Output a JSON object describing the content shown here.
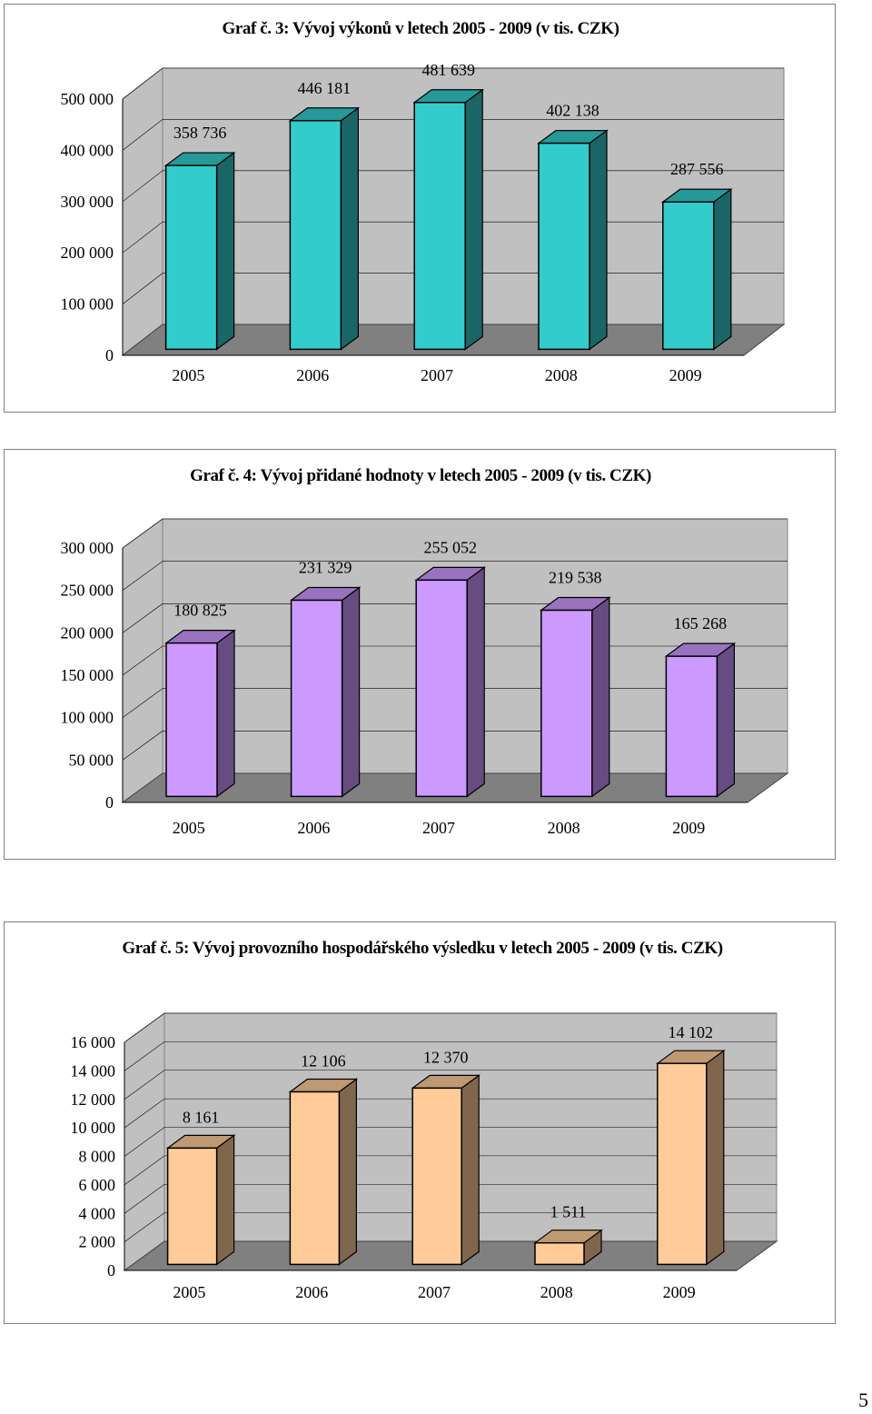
{
  "page_number": "5",
  "chart_data": [
    {
      "type": "bar",
      "title": "Graf č. 3: Vývoj výkonů v letech 2005 - 2009 (v tis. CZK)",
      "categories": [
        "2005",
        "2006",
        "2007",
        "2008",
        "2009"
      ],
      "values": [
        358736,
        446181,
        481639,
        402138,
        287556
      ],
      "value_labels": [
        "358 736",
        "446 181",
        "481 639",
        "402 138",
        "287 556"
      ],
      "ylim": [
        0,
        500000
      ],
      "yticks": [
        0,
        100000,
        200000,
        300000,
        400000,
        500000
      ],
      "ytick_labels": [
        "0",
        "100 000",
        "200 000",
        "300 000",
        "400 000",
        "500 000"
      ],
      "xlabel": "",
      "ylabel": "",
      "colors": {
        "front": "#33CCCC",
        "side": "#1A6666",
        "top": "#269999"
      }
    },
    {
      "type": "bar",
      "title": "Graf č. 4: Vývoj přidané hodnoty v letech 2005 - 2009 (v tis. CZK)",
      "categories": [
        "2005",
        "2006",
        "2007",
        "2008",
        "2009"
      ],
      "values": [
        180825,
        231329,
        255052,
        219538,
        165268
      ],
      "value_labels": [
        "180 825",
        "231 329",
        "255 052",
        "219 538",
        "165 268"
      ],
      "ylim": [
        0,
        300000
      ],
      "yticks": [
        0,
        50000,
        100000,
        150000,
        200000,
        250000,
        300000
      ],
      "ytick_labels": [
        "0",
        "50 000",
        "100 000",
        "150 000",
        "200 000",
        "250 000",
        "300 000"
      ],
      "xlabel": "",
      "ylabel": "",
      "colors": {
        "front": "#CC99FF",
        "side": "#664C80",
        "top": "#9973BF"
      }
    },
    {
      "type": "bar",
      "title": "Graf č. 5: Vývoj provozního hospodářského výsledku v letech 2005 - 2009 (v tis. CZK)",
      "categories": [
        "2005",
        "2006",
        "2007",
        "2008",
        "2009"
      ],
      "values": [
        8161,
        12106,
        12370,
        1511,
        14102
      ],
      "value_labels": [
        "8 161",
        "12 106",
        "12 370",
        "1 511",
        "14 102"
      ],
      "ylim": [
        0,
        16000
      ],
      "yticks": [
        0,
        2000,
        4000,
        6000,
        8000,
        10000,
        12000,
        14000,
        16000
      ],
      "ytick_labels": [
        "0",
        "2 000",
        "4 000",
        "6 000",
        "8 000",
        "10 000",
        "12 000",
        "14 000",
        "16 000"
      ],
      "xlabel": "",
      "ylabel": "",
      "colors": {
        "front": "#FFCC99",
        "side": "#80664C",
        "top": "#BF9973"
      }
    }
  ]
}
